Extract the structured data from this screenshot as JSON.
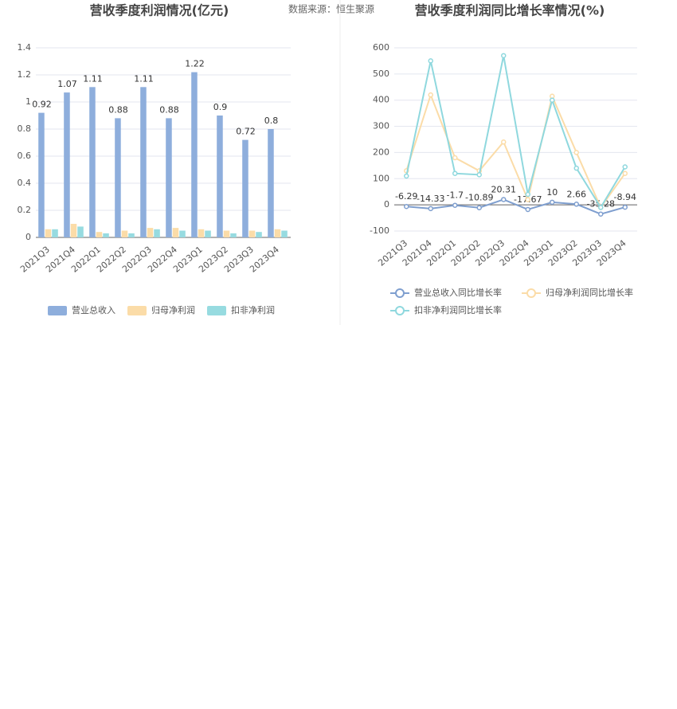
{
  "source": "数据来源：恒生聚源",
  "chart_data": [
    {
      "type": "bar",
      "title": "营收季度利润情况(亿元)",
      "categories": [
        "2021Q3",
        "2021Q4",
        "2022Q1",
        "2022Q2",
        "2022Q3",
        "2022Q4",
        "2023Q1",
        "2023Q2",
        "2023Q3",
        "2023Q4"
      ],
      "series": [
        {
          "name": "营业总收入",
          "color": "#8eaedc",
          "values": [
            0.92,
            1.07,
            1.11,
            0.88,
            1.11,
            0.88,
            1.22,
            0.9,
            0.72,
            0.8
          ]
        },
        {
          "name": "归母净利润",
          "color": "#fbdca8",
          "values": [
            0.06,
            0.1,
            0.04,
            0.05,
            0.07,
            0.07,
            0.06,
            0.05,
            0.05,
            0.06
          ]
        },
        {
          "name": "扣非净利润",
          "color": "#97dbe0",
          "values": [
            0.06,
            0.08,
            0.03,
            0.03,
            0.06,
            0.05,
            0.05,
            0.03,
            0.04,
            0.05
          ]
        }
      ],
      "value_labels_series": 0,
      "ylim": [
        0,
        1.4
      ],
      "yticks": [
        0,
        0.2,
        0.4,
        0.6,
        0.8,
        1,
        1.2,
        1.4
      ],
      "grid": true
    },
    {
      "type": "line",
      "title": "营收季度利润同比增长率情况(%)",
      "categories": [
        "2021Q3",
        "2021Q4",
        "2022Q1",
        "2022Q2",
        "2022Q3",
        "2022Q4",
        "2023Q1",
        "2023Q2",
        "2023Q3",
        "2023Q4"
      ],
      "series": [
        {
          "name": "营业总收入同比增长率",
          "color": "#7f9fcf",
          "values": [
            -6.29,
            -14.33,
            -1.7,
            -10.89,
            20.31,
            -17.67,
            10.0,
            2.66,
            -35.28,
            -8.94
          ]
        },
        {
          "name": "归母净利润同比增长率",
          "color": "#fbdca8",
          "values": [
            130,
            420,
            180,
            130,
            240,
            20,
            415,
            200,
            -10,
            120
          ]
        },
        {
          "name": "扣非净利润同比增长率",
          "color": "#8fd8de",
          "values": [
            110,
            550,
            120,
            115,
            570,
            40,
            400,
            140,
            -10,
            145
          ]
        }
      ],
      "value_labels_series": 0,
      "ylim": [
        -100,
        600
      ],
      "yticks": [
        -100,
        0,
        100,
        200,
        300,
        400,
        500,
        600
      ],
      "grid": true
    }
  ]
}
